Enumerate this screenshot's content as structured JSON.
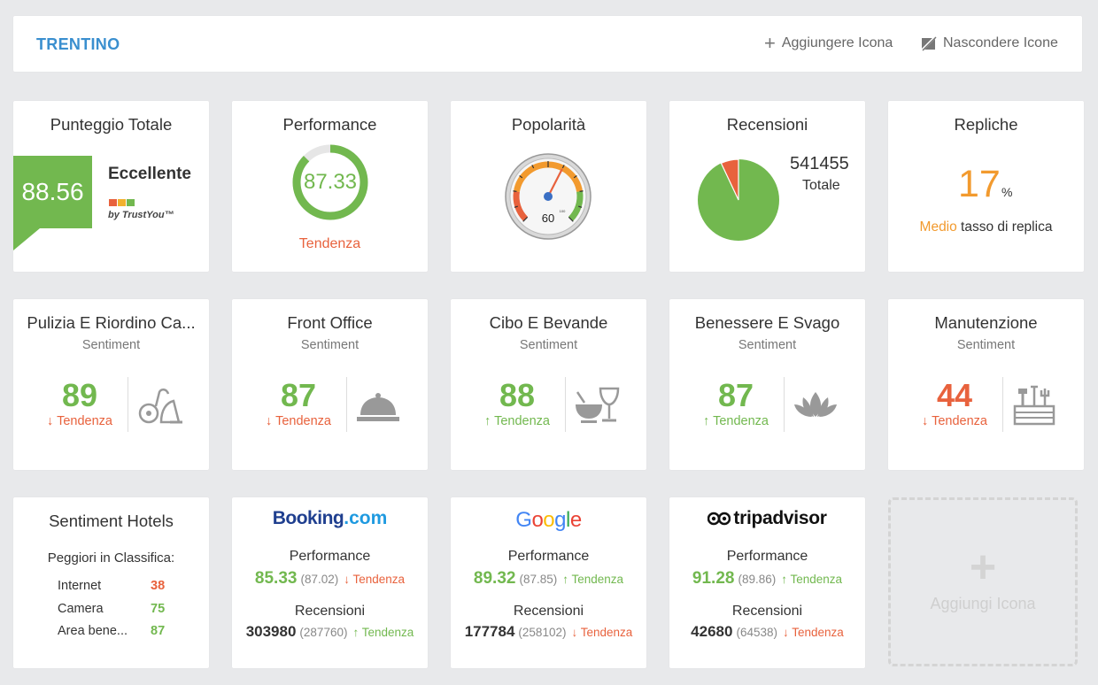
{
  "header": {
    "title": "TRENTINO",
    "add_icon_label": "Aggiungere Icona",
    "hide_icons_label": "Nascondere Icone"
  },
  "punteggio": {
    "title": "Punteggio Totale",
    "score": "88.56",
    "rating": "Eccellente",
    "brand": "by TrustYou™"
  },
  "performance": {
    "title": "Performance",
    "value": "87.33",
    "fraction": 0.8733,
    "trend_label": "Tendenza"
  },
  "popolarita": {
    "title": "Popolarità",
    "gauge_value": "60",
    "gauge_max_label": "100",
    "gauge_fraction": 0.6
  },
  "recensioni": {
    "title": "Recensioni",
    "total": "541455",
    "total_label": "Totale",
    "positive_share": 0.93
  },
  "repliche": {
    "title": "Repliche",
    "value": "17",
    "unit": "%",
    "level": "Medio",
    "caption": " tasso di replica"
  },
  "sentiment_cards": [
    {
      "title": "Pulizia E Riordino Ca...",
      "sub": "Sentiment",
      "value": "89",
      "trend_dir": "↓",
      "trend": "Tendenza",
      "icon": "vacuum-icon"
    },
    {
      "title": "Front Office",
      "sub": "Sentiment",
      "value": "87",
      "trend_dir": "↓",
      "trend": "Tendenza",
      "icon": "reception-bell-icon"
    },
    {
      "title": "Cibo E Bevande",
      "sub": "Sentiment",
      "value": "88",
      "trend_dir": "↑",
      "trend": "Tendenza",
      "icon": "food-drink-icon"
    },
    {
      "title": "Benessere E Svago",
      "sub": "Sentiment",
      "value": "87",
      "trend_dir": "↑",
      "trend": "Tendenza",
      "icon": "lotus-icon"
    },
    {
      "title": "Manutenzione",
      "sub": "Sentiment",
      "value": "44",
      "trend_dir": "↓",
      "trend": "Tendenza",
      "icon": "toolbox-icon"
    }
  ],
  "sentiment_hotels": {
    "title": "Sentiment Hotels",
    "subtitle": "Peggiori in Classifica:",
    "rows": [
      {
        "label": "Internet",
        "value": "38"
      },
      {
        "label": "Camera",
        "value": "75"
      },
      {
        "label": "Area bene...",
        "value": "87"
      }
    ]
  },
  "ota": [
    {
      "brand": "Booking.com",
      "perf_label": "Performance",
      "perf": "85.33",
      "perf_prev": "(87.02)",
      "perf_trend_dir": "↓",
      "perf_trend": "Tendenza",
      "rev_label": "Recensioni",
      "rev": "303980",
      "rev_prev": "(287760)",
      "rev_trend_dir": "↑",
      "rev_trend": "Tendenza"
    },
    {
      "brand": "Google",
      "perf_label": "Performance",
      "perf": "89.32",
      "perf_prev": "(87.85)",
      "perf_trend_dir": "↑",
      "perf_trend": "Tendenza",
      "rev_label": "Recensioni",
      "rev": "177784",
      "rev_prev": "(258102)",
      "rev_trend_dir": "↓",
      "rev_trend": "Tendenza"
    },
    {
      "brand": "tripadvisor",
      "perf_label": "Performance",
      "perf": "91.28",
      "perf_prev": "(89.86)",
      "perf_trend_dir": "↑",
      "perf_trend": "Tendenza",
      "rev_label": "Recensioni",
      "rev": "42680",
      "rev_prev": "(64538)",
      "rev_trend_dir": "↓",
      "rev_trend": "Tendenza"
    }
  ],
  "add_tile": {
    "label": "Aggiungi Icona"
  },
  "colors": {
    "green": "#72b84f",
    "red": "#e8623d",
    "orange": "#f29a2e",
    "blue": "#3a8fcf"
  }
}
